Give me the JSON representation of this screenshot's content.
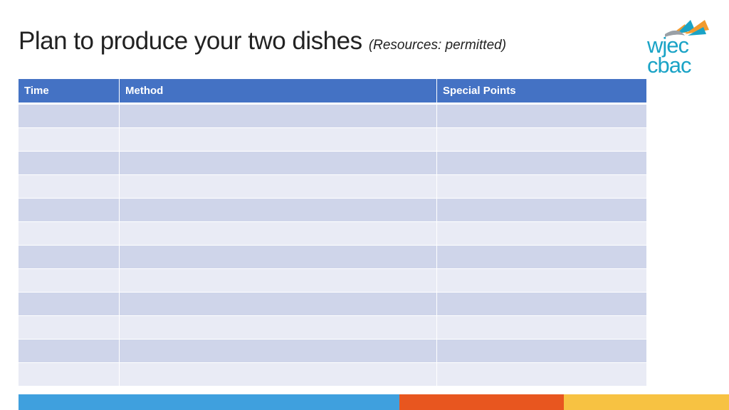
{
  "slide": {
    "title": "Plan to produce your two dishes",
    "subtitle": "(Resources: permitted)"
  },
  "logo": {
    "line1": "wjec",
    "line2": "cbac",
    "colors": [
      "#1aa3c6",
      "#f29a2e",
      "#9aa0a6"
    ]
  },
  "table": {
    "headers": [
      "Time",
      "Method",
      "Special Points"
    ],
    "row_count": 12,
    "header_color": "#4472c4",
    "band_colors": [
      "#cfd5ea",
      "#e9ebf5"
    ]
  },
  "footer_colors": [
    "#3fa0de",
    "#e8561f",
    "#f7c242"
  ]
}
